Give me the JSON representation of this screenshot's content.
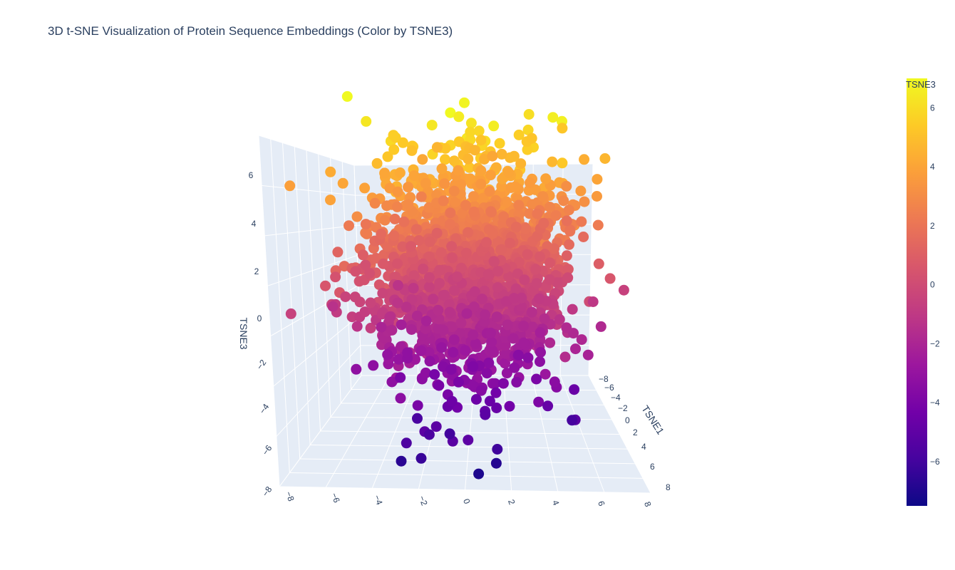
{
  "chart_data": {
    "type": "scatter",
    "subtype": "3d",
    "title": "3D t-SNE Visualization of Protein Sequence Embeddings (Color by TSNE3)",
    "axes": {
      "x": {
        "label": "",
        "range": [
          -8,
          8
        ],
        "ticks": [
          "−8",
          "−6",
          "−4",
          "−2",
          "0",
          "2",
          "4",
          "6",
          "8"
        ]
      },
      "y": {
        "label": "TSNE1",
        "range": [
          -8,
          8
        ],
        "ticks": [
          "−8",
          "−6",
          "−4",
          "−2",
          "0",
          "2",
          "4",
          "6",
          "8"
        ]
      },
      "z": {
        "label": "TSNE3",
        "range": [
          -8,
          7
        ],
        "ticks": [
          "−8",
          "−6",
          "−4",
          "−2",
          "0",
          "2",
          "4",
          "6"
        ]
      }
    },
    "colorbar": {
      "title": "TSNE3",
      "colorscale": "Plasma",
      "range": [
        -7.5,
        7
      ],
      "ticks": [
        "6",
        "4",
        "2",
        "0",
        "−2",
        "−4",
        "−6"
      ]
    },
    "point_count_estimate": 1800,
    "grid": true,
    "background": "#e5ecf6"
  }
}
